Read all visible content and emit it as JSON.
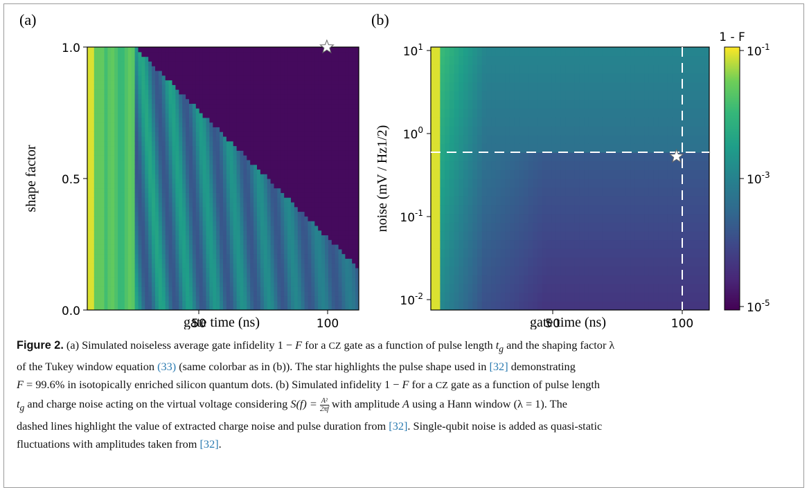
{
  "chart_data": [
    {
      "type": "heatmap",
      "panel_label": "(a)",
      "xlabel": "gate time (ns)",
      "ylabel": "shape factor",
      "x_ticks": [
        50,
        100
      ],
      "x_tick_labels": [
        "50",
        "100"
      ],
      "y_ticks": [
        0.0,
        0.5,
        1.0
      ],
      "y_tick_labels": [
        "0.0",
        "0.5",
        "1.0"
      ],
      "xlim": [
        10,
        112
      ],
      "ylim": [
        0.0,
        1.0
      ],
      "marker": {
        "symbol": "star",
        "x": 100,
        "y": 1.0,
        "color": "#ffffff"
      }
    },
    {
      "type": "heatmap",
      "panel_label": "(b)",
      "xlabel": "gate time (ns)",
      "ylabel": "noise (mV / Hz1/2)",
      "y_scale": "log",
      "x_ticks": [
        50,
        100
      ],
      "x_tick_labels": [
        "50",
        "100"
      ],
      "y_ticks": [
        0.01,
        0.1,
        1,
        10
      ],
      "y_tick_labels_base": [
        "10",
        "10",
        "10",
        "10"
      ],
      "y_tick_labels_exp": [
        "-2",
        "-1",
        "0",
        "1"
      ],
      "xlim": [
        10,
        112
      ],
      "ylim": [
        0.008,
        13
      ],
      "dashed_lines": {
        "x": 100,
        "y": 0.6,
        "color": "#ffffff"
      },
      "marker": {
        "symbol": "star",
        "x": 100,
        "y": 0.6,
        "color": "#ffffff"
      },
      "colorbar": {
        "title": "1 - F",
        "scale": "log",
        "range": [
          1e-05,
          0.1
        ],
        "tick_labels_base": [
          "10",
          "10",
          "10"
        ],
        "tick_labels_exp": [
          "-1",
          "-3",
          "-5"
        ],
        "colormap": "viridis"
      }
    }
  ],
  "caption": {
    "label": "Figure 2.",
    "line1_a": " (a) Simulated noiseless average gate infidelity 1 − ",
    "line1_F": "F",
    "line1_b": " for a ",
    "line1_cz": "CZ",
    "line1_c": " gate as a function of pulse length ",
    "line1_t": "t",
    "line1_g": "g",
    "line1_d": " and the shaping factor λ",
    "line2_a": "of the Tukey window equation ",
    "line2_ref1": "(33)",
    "line2_b": " (same colorbar as in (b)). The star highlights the pulse shape used in ",
    "line2_ref2": "[32]",
    "line2_c": " demonstrating",
    "line3_a": "F",
    "line3_b": " = 99.6% in isotopically enriched silicon quantum dots. (b) Simulated infidelity 1 − ",
    "line3_F": "F",
    "line3_c": " for a ",
    "line3_cz": "CZ",
    "line3_d": " gate as a function of pulse length",
    "line4_t": "t",
    "line4_g": "g",
    "line4_a": " and charge noise acting on the virtual voltage considering ",
    "line4_S": "S(f) = ",
    "line4_frac_num": "A²",
    "line4_frac_den": "2πf",
    "line4_b": " with amplitude ",
    "line4_A": "A",
    "line4_c": " using a Hann window (λ = 1). The",
    "line5_a": "dashed lines highlight the value of extracted charge noise and pulse duration from ",
    "line5_ref": "[32]",
    "line5_b": ". Single-qubit noise is added as quasi-static",
    "line6_a": "fluctuations with amplitudes taken from ",
    "line6_ref": "[32]",
    "line6_b": "."
  }
}
